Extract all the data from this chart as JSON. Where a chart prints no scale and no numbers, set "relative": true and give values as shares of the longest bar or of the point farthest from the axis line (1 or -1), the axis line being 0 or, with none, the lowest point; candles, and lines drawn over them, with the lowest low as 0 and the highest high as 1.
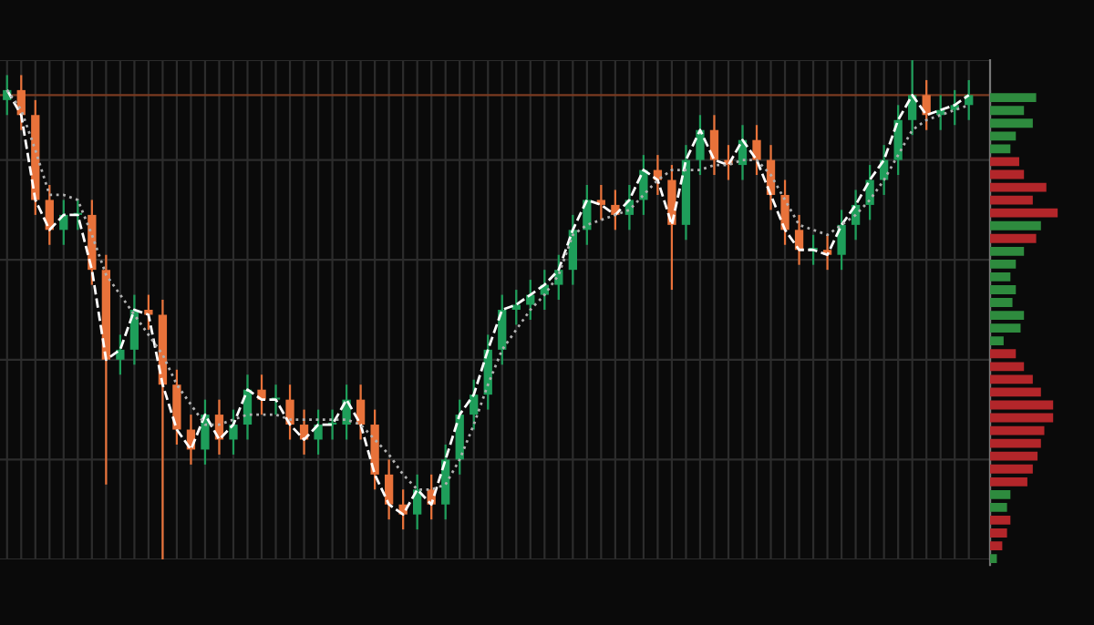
{
  "chart_data": [
    {
      "type": "candlestick",
      "relative": true,
      "grid": true,
      "categories": [
        null,
        null,
        null,
        null,
        null,
        null,
        null,
        null,
        null,
        null,
        null,
        null,
        null,
        null,
        null,
        null,
        null,
        null,
        null,
        null,
        null,
        null,
        null,
        null,
        null,
        null,
        null,
        null,
        null,
        null,
        null,
        null,
        null,
        null,
        null,
        null,
        null,
        null,
        null,
        null,
        null,
        null,
        null,
        null,
        null,
        null,
        null,
        null,
        null,
        null,
        null,
        null,
        null,
        null,
        null,
        null,
        null,
        null,
        null,
        null,
        null,
        null,
        null,
        null,
        null,
        null,
        null,
        null,
        null
      ],
      "ohlc": [
        [
          0.92,
          0.97,
          0.89,
          0.94
        ],
        [
          0.94,
          0.97,
          0.86,
          0.89
        ],
        [
          0.89,
          0.92,
          0.69,
          0.72
        ],
        [
          0.72,
          0.75,
          0.63,
          0.66
        ],
        [
          0.66,
          0.72,
          0.63,
          0.69
        ],
        [
          0.69,
          0.72,
          0.66,
          0.69
        ],
        [
          0.69,
          0.72,
          0.55,
          0.58
        ],
        [
          0.58,
          0.61,
          0.15,
          0.4
        ],
        [
          0.4,
          0.45,
          0.37,
          0.42
        ],
        [
          0.42,
          0.53,
          0.39,
          0.5
        ],
        [
          0.5,
          0.53,
          0.46,
          0.49
        ],
        [
          0.49,
          0.52,
          0.0,
          0.35
        ],
        [
          0.35,
          0.38,
          0.23,
          0.26
        ],
        [
          0.26,
          0.29,
          0.19,
          0.22
        ],
        [
          0.22,
          0.32,
          0.19,
          0.29
        ],
        [
          0.29,
          0.32,
          0.21,
          0.24
        ],
        [
          0.24,
          0.3,
          0.21,
          0.27
        ],
        [
          0.27,
          0.37,
          0.24,
          0.34
        ],
        [
          0.34,
          0.37,
          0.29,
          0.32
        ],
        [
          0.32,
          0.35,
          0.29,
          0.32
        ],
        [
          0.32,
          0.35,
          0.24,
          0.27
        ],
        [
          0.27,
          0.3,
          0.21,
          0.24
        ],
        [
          0.24,
          0.3,
          0.21,
          0.27
        ],
        [
          0.27,
          0.3,
          0.24,
          0.27
        ],
        [
          0.27,
          0.35,
          0.24,
          0.32
        ],
        [
          0.32,
          0.35,
          0.24,
          0.27
        ],
        [
          0.27,
          0.3,
          0.14,
          0.17
        ],
        [
          0.17,
          0.2,
          0.08,
          0.11
        ],
        [
          0.11,
          0.14,
          0.06,
          0.09
        ],
        [
          0.09,
          0.17,
          0.06,
          0.14
        ],
        [
          0.14,
          0.17,
          0.08,
          0.11
        ],
        [
          0.11,
          0.23,
          0.08,
          0.2
        ],
        [
          0.2,
          0.32,
          0.17,
          0.29
        ],
        [
          0.29,
          0.36,
          0.26,
          0.33
        ],
        [
          0.33,
          0.45,
          0.3,
          0.42
        ],
        [
          0.42,
          0.53,
          0.39,
          0.5
        ],
        [
          0.5,
          0.54,
          0.47,
          0.51
        ],
        [
          0.51,
          0.56,
          0.48,
          0.53
        ],
        [
          0.53,
          0.58,
          0.5,
          0.55
        ],
        [
          0.55,
          0.61,
          0.52,
          0.58
        ],
        [
          0.58,
          0.69,
          0.55,
          0.66
        ],
        [
          0.66,
          0.75,
          0.63,
          0.72
        ],
        [
          0.72,
          0.75,
          0.68,
          0.71
        ],
        [
          0.71,
          0.74,
          0.66,
          0.69
        ],
        [
          0.69,
          0.75,
          0.66,
          0.72
        ],
        [
          0.72,
          0.81,
          0.69,
          0.78
        ],
        [
          0.78,
          0.81,
          0.73,
          0.76
        ],
        [
          0.76,
          0.79,
          0.54,
          0.67
        ],
        [
          0.67,
          0.83,
          0.64,
          0.8
        ],
        [
          0.8,
          0.89,
          0.77,
          0.86
        ],
        [
          0.86,
          0.89,
          0.77,
          0.8
        ],
        [
          0.8,
          0.83,
          0.76,
          0.79
        ],
        [
          0.79,
          0.87,
          0.76,
          0.84
        ],
        [
          0.84,
          0.87,
          0.77,
          0.8
        ],
        [
          0.8,
          0.83,
          0.7,
          0.73
        ],
        [
          0.73,
          0.76,
          0.63,
          0.66
        ],
        [
          0.66,
          0.69,
          0.59,
          0.62
        ],
        [
          0.62,
          0.65,
          0.59,
          0.62
        ],
        [
          0.62,
          0.65,
          0.58,
          0.61
        ],
        [
          0.61,
          0.7,
          0.58,
          0.67
        ],
        [
          0.67,
          0.74,
          0.64,
          0.71
        ],
        [
          0.71,
          0.79,
          0.68,
          0.76
        ],
        [
          0.76,
          0.83,
          0.73,
          0.8
        ],
        [
          0.8,
          0.91,
          0.77,
          0.88
        ],
        [
          0.88,
          1.0,
          0.85,
          0.93
        ],
        [
          0.93,
          0.96,
          0.86,
          0.89
        ],
        [
          0.89,
          0.93,
          0.86,
          0.9
        ],
        [
          0.9,
          0.94,
          0.87,
          0.91
        ],
        [
          0.91,
          0.96,
          0.88,
          0.93
        ]
      ],
      "colors": [
        "#1e9e5a",
        "#e8723a",
        "#e8723a",
        "#e8723a",
        "#1e9e5a",
        "#1e9e5a",
        "#e8723a",
        "#e8723a",
        "#1e9e5a",
        "#1e9e5a",
        "#e8723a",
        "#e8723a",
        "#e8723a",
        "#e8723a",
        "#1e9e5a",
        "#e8723a",
        "#1e9e5a",
        "#1e9e5a",
        "#e8723a",
        "#1e9e5a",
        "#e8723a",
        "#e8723a",
        "#1e9e5a",
        "#1e9e5a",
        "#1e9e5a",
        "#e8723a",
        "#e8723a",
        "#e8723a",
        "#e8723a",
        "#1e9e5a",
        "#e8723a",
        "#1e9e5a",
        "#1e9e5a",
        "#1e9e5a",
        "#1e9e5a",
        "#1e9e5a",
        "#1e9e5a",
        "#1e9e5a",
        "#1e9e5a",
        "#1e9e5a",
        "#1e9e5a",
        "#1e9e5a",
        "#e8723a",
        "#e8723a",
        "#1e9e5a",
        "#1e9e5a",
        "#e8723a",
        "#e8723a",
        "#1e9e5a",
        "#1e9e5a",
        "#e8723a",
        "#e8723a",
        "#1e9e5a",
        "#e8723a",
        "#e8723a",
        "#e8723a",
        "#e8723a",
        "#1e9e5a",
        "#e8723a",
        "#1e9e5a",
        "#1e9e5a",
        "#1e9e5a",
        "#1e9e5a",
        "#1e9e5a",
        "#1e9e5a",
        "#e8723a",
        "#1e9e5a",
        "#1e9e5a",
        "#1e9e5a"
      ],
      "series": [
        {
          "type": "line",
          "color": "#ffffff",
          "line_style": "dashed",
          "values": [
            0.94,
            0.89,
            0.72,
            0.66,
            0.69,
            0.69,
            0.58,
            0.4,
            0.42,
            0.5,
            0.49,
            0.35,
            0.26,
            0.22,
            0.29,
            0.24,
            0.27,
            0.34,
            0.32,
            0.32,
            0.27,
            0.24,
            0.27,
            0.27,
            0.32,
            0.27,
            0.17,
            0.11,
            0.09,
            0.14,
            0.11,
            0.2,
            0.29,
            0.33,
            0.42,
            0.5,
            0.51,
            0.53,
            0.55,
            0.58,
            0.66,
            0.72,
            0.71,
            0.69,
            0.72,
            0.78,
            0.76,
            0.67,
            0.8,
            0.86,
            0.8,
            0.79,
            0.84,
            0.8,
            0.73,
            0.66,
            0.62,
            0.62,
            0.61,
            0.67,
            0.71,
            0.76,
            0.8,
            0.88,
            0.93,
            0.89,
            0.9,
            0.91,
            0.93
          ]
        },
        {
          "type": "line",
          "color": "#b0b0b0",
          "line_style": "dotted",
          "values": [
            0.94,
            0.9,
            0.82,
            0.73,
            0.73,
            0.72,
            0.65,
            0.57,
            0.53,
            0.49,
            0.45,
            0.41,
            0.35,
            0.31,
            0.27,
            0.27,
            0.28,
            0.29,
            0.29,
            0.29,
            0.28,
            0.28,
            0.28,
            0.28,
            0.28,
            0.27,
            0.24,
            0.21,
            0.17,
            0.14,
            0.14,
            0.15,
            0.2,
            0.27,
            0.35,
            0.42,
            0.46,
            0.5,
            0.53,
            0.57,
            0.65,
            0.67,
            0.68,
            0.69,
            0.7,
            0.73,
            0.76,
            0.78,
            0.78,
            0.78,
            0.79,
            0.79,
            0.8,
            0.8,
            0.77,
            0.72,
            0.67,
            0.66,
            0.65,
            0.67,
            0.69,
            0.72,
            0.76,
            0.81,
            0.86,
            0.88,
            0.89,
            0.9,
            0.91
          ]
        }
      ],
      "ref_lines": [
        {
          "axis": "y",
          "value": 0.93,
          "color": "#7a3a20",
          "line_style": "solid"
        }
      ]
    },
    {
      "type": "bar",
      "orientation": "horizontal",
      "relative": true,
      "categories": [
        null,
        null,
        null,
        null,
        null,
        null,
        null,
        null,
        null,
        null,
        null,
        null,
        null,
        null,
        null,
        null,
        null,
        null,
        null,
        null,
        null,
        null,
        null,
        null,
        null,
        null,
        null,
        null,
        null,
        null,
        null,
        null,
        null,
        null,
        null,
        null,
        null
      ],
      "values": [
        0.68,
        0.5,
        0.63,
        0.38,
        0.3,
        0.43,
        0.5,
        0.83,
        0.63,
        1,
        0.75,
        0.68,
        0.5,
        0.38,
        0.3,
        0.38,
        0.33,
        0.5,
        0.45,
        0.2,
        0.38,
        0.5,
        0.63,
        0.75,
        0.93,
        0.93,
        0.8,
        0.75,
        0.7,
        0.63,
        0.55,
        0.3,
        0.25,
        0.3,
        0.25,
        0.18,
        0.1
      ],
      "colors": [
        "#2e8b3e",
        "#2e8b3e",
        "#2e8b3e",
        "#2e8b3e",
        "#2e8b3e",
        "#b3262a",
        "#b3262a",
        "#b3262a",
        "#b3262a",
        "#b3262a",
        "#2e8b3e",
        "#b3262a",
        "#2e8b3e",
        "#2e8b3e",
        "#2e8b3e",
        "#2e8b3e",
        "#2e8b3e",
        "#2e8b3e",
        "#2e8b3e",
        "#2e8b3e",
        "#b3262a",
        "#b3262a",
        "#b3262a",
        "#b3262a",
        "#b3262a",
        "#b3262a",
        "#b3262a",
        "#b3262a",
        "#b3262a",
        "#b3262a",
        "#b3262a",
        "#2e8b3e",
        "#2e8b3e",
        "#b3262a",
        "#b3262a",
        "#b3262a",
        "#2e8b3e"
      ]
    }
  ]
}
